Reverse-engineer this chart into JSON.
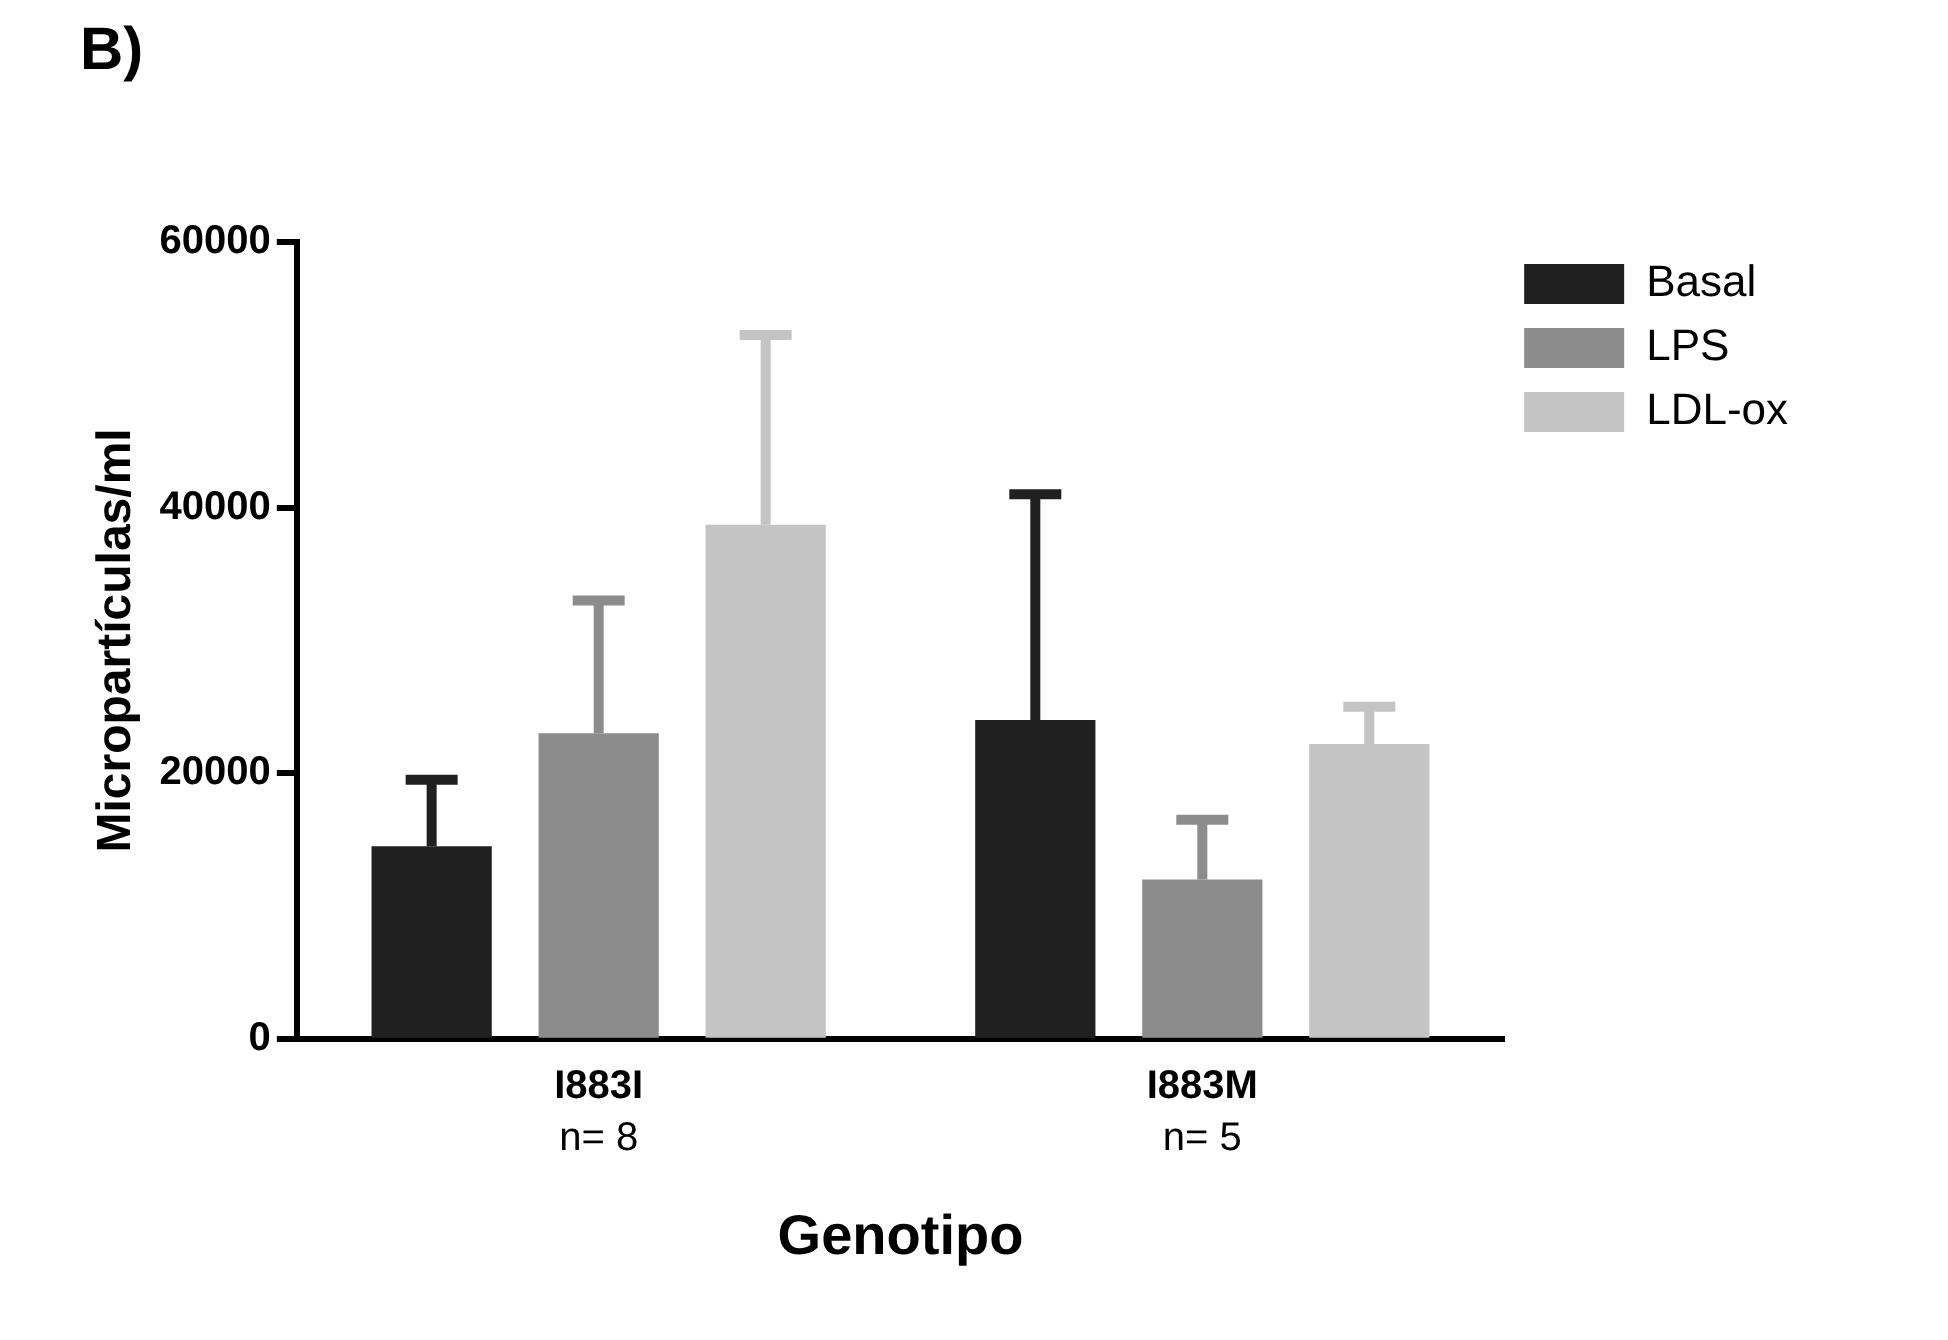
{
  "chart_data": {
    "type": "bar",
    "title": "B)",
    "xlabel": "Genotipo",
    "ylabel": "Micropartículas/ml",
    "categories": [
      "I883I",
      "I883M"
    ],
    "series": [
      {
        "name": "Basal",
        "color": "#202020",
        "values": [
          14500,
          24000
        ],
        "errors": [
          [
            14500,
            19500
          ],
          [
            24000,
            41000
          ]
        ]
      },
      {
        "name": "LPS",
        "color": "#8c8c8c",
        "values": [
          23000,
          12000
        ],
        "errors": [
          [
            23000,
            33000
          ],
          [
            12000,
            16500
          ]
        ]
      },
      {
        "name": "LDL-ox",
        "color": "#c4c4c4",
        "values": [
          38700,
          22200
        ],
        "errors": [
          [
            38700,
            53000
          ],
          [
            22200,
            25000
          ]
        ]
      }
    ],
    "annotations": [
      "n= 8",
      "n= 5"
    ],
    "ylim": [
      0,
      60000
    ],
    "yticks": [
      0,
      20000,
      40000,
      60000
    ],
    "grid": false,
    "legend": "top right"
  }
}
